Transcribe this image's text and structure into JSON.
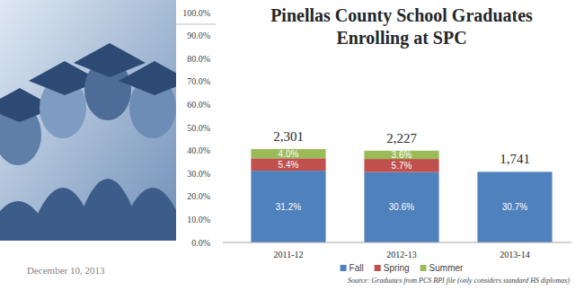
{
  "chart_data": {
    "type": "bar",
    "title": "Pinellas County School Graduates Enrolling at SPC",
    "stacked": true,
    "data_labels": true,
    "grid": false,
    "legend": "bottom",
    "categories": [
      "2011-12",
      "2012-13",
      "2013-14"
    ],
    "series": [
      {
        "name": "Fall",
        "color": "#4f81bd",
        "values": [
          31.2,
          30.6,
          30.7
        ],
        "value_labels": [
          "31.2%",
          "30.6%",
          "30.7%"
        ]
      },
      {
        "name": "Spring",
        "color": "#c0504d",
        "values": [
          5.4,
          5.7,
          null
        ],
        "value_labels": [
          "5.4%",
          "5.7%",
          null
        ]
      },
      {
        "name": "Summer",
        "color": "#9bbb59",
        "values": [
          4.0,
          3.6,
          null
        ],
        "value_labels": [
          "4.0%",
          "3.6%",
          null
        ]
      }
    ],
    "annotations": [
      "2,301",
      "2,227",
      "1,741"
    ],
    "ylim": [
      0,
      100
    ],
    "yticks": [
      {
        "value": 0,
        "label": "0.0%"
      },
      {
        "value": 10,
        "label": "10.0%"
      },
      {
        "value": 20,
        "label": "20.0%"
      },
      {
        "value": 30,
        "label": "30.0%"
      },
      {
        "value": 40,
        "label": "40.0%"
      },
      {
        "value": 50,
        "label": "50.0%"
      },
      {
        "value": 60,
        "label": "60.0%"
      },
      {
        "value": 70,
        "label": "70.0%"
      },
      {
        "value": 80,
        "label": "80.0%"
      },
      {
        "value": 90,
        "label": "90.0%"
      },
      {
        "value": 100,
        "label": "100.0%"
      }
    ],
    "date": "December 10, 2013",
    "source": "Source: Graduates from PCS BPI file (only considers standard HS diplomas)"
  }
}
